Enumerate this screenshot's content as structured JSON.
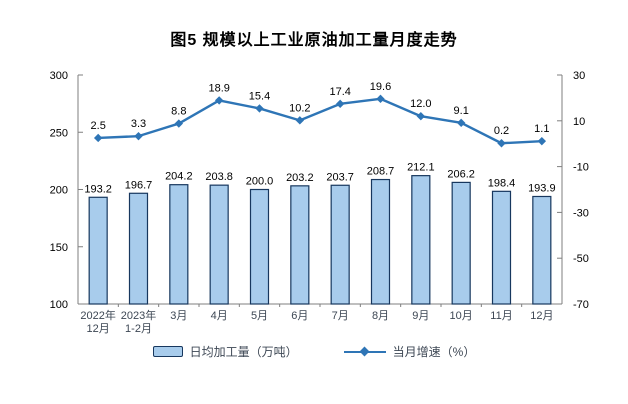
{
  "title": "图5  规模以上工业原油加工量月度走势",
  "chart_data": {
    "type": "bar",
    "subtype": "bar-line-combo",
    "title": "图5  规模以上工业原油加工量月度走势",
    "categories": [
      "2022年\n12月",
      "2023年\n1-2月",
      "3月",
      "4月",
      "5月",
      "6月",
      "7月",
      "8月",
      "9月",
      "10月",
      "11月",
      "12月"
    ],
    "series": [
      {
        "name": "日均加工量（万吨）",
        "type": "bar",
        "axis": "left",
        "values": [
          193.2,
          196.7,
          204.2,
          203.8,
          200.0,
          203.2,
          203.7,
          208.7,
          212.1,
          206.2,
          198.4,
          193.9
        ]
      },
      {
        "name": "当月增速（%）",
        "type": "line",
        "axis": "right",
        "values": [
          2.5,
          3.3,
          8.8,
          18.9,
          15.4,
          10.2,
          17.4,
          19.6,
          12.0,
          9.1,
          0.2,
          1.1
        ]
      }
    ],
    "left_axis": {
      "min": 100,
      "max": 300,
      "ticks": [
        300,
        250,
        200,
        150,
        100
      ]
    },
    "right_axis": {
      "min": -70,
      "max": 30,
      "ticks": [
        30,
        10,
        -10,
        -30,
        -50,
        -70
      ]
    },
    "grid": false,
    "legend_position": "bottom",
    "colors": {
      "bar_fill": "#a8ccec",
      "bar_border": "#17375e",
      "line": "#2e75b6",
      "axis_line": "#7f7f7f",
      "data_label": "#000000",
      "x_label": "#3d4754"
    }
  },
  "legend": {
    "items": [
      {
        "label": "日均加工量（万吨）",
        "swatch": "bar"
      },
      {
        "label": "当月增速（%）",
        "swatch": "line"
      }
    ]
  }
}
